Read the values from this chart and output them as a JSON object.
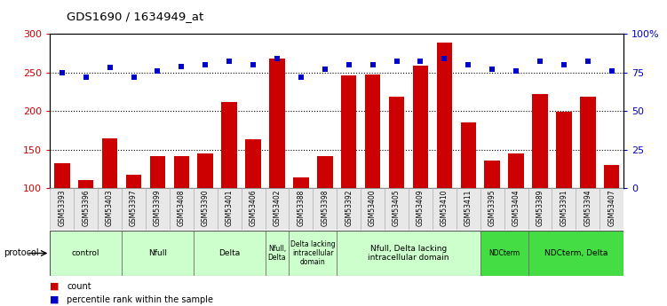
{
  "title": "GDS1690 / 1634949_at",
  "samples": [
    "GSM53393",
    "GSM53396",
    "GSM53403",
    "GSM53397",
    "GSM53399",
    "GSM53408",
    "GSM53390",
    "GSM53401",
    "GSM53406",
    "GSM53402",
    "GSM53388",
    "GSM53398",
    "GSM53392",
    "GSM53400",
    "GSM53405",
    "GSM53409",
    "GSM53410",
    "GSM53411",
    "GSM53395",
    "GSM53404",
    "GSM53389",
    "GSM53391",
    "GSM53394",
    "GSM53407"
  ],
  "counts": [
    132,
    110,
    165,
    117,
    141,
    142,
    145,
    211,
    163,
    268,
    114,
    141,
    246,
    247,
    218,
    259,
    288,
    185,
    136,
    145,
    222,
    199,
    218,
    130
  ],
  "percentiles": [
    75,
    72,
    78,
    72,
    76,
    79,
    80,
    82,
    80,
    84,
    72,
    77,
    80,
    80,
    82,
    82,
    84,
    80,
    77,
    76,
    82,
    80,
    82,
    76
  ],
  "groups": [
    {
      "label": "control",
      "start": 0,
      "end": 3,
      "color": "#ccffcc",
      "dark": false
    },
    {
      "label": "Nfull",
      "start": 3,
      "end": 6,
      "color": "#ccffcc",
      "dark": false
    },
    {
      "label": "Delta",
      "start": 6,
      "end": 9,
      "color": "#ccffcc",
      "dark": false
    },
    {
      "label": "Nfull,\nDelta",
      "start": 9,
      "end": 10,
      "color": "#ccffcc",
      "dark": false
    },
    {
      "label": "Delta lacking\nintracellular\ndomain",
      "start": 10,
      "end": 12,
      "color": "#ccffcc",
      "dark": false
    },
    {
      "label": "Nfull, Delta lacking\nintracellular domain",
      "start": 12,
      "end": 18,
      "color": "#ccffcc",
      "dark": false
    },
    {
      "label": "NDCterm",
      "start": 18,
      "end": 20,
      "color": "#44dd44",
      "dark": true
    },
    {
      "label": "NDCterm, Delta",
      "start": 20,
      "end": 24,
      "color": "#44dd44",
      "dark": true
    }
  ],
  "ylim_left": [
    100,
    300
  ],
  "ylim_right": [
    0,
    100
  ],
  "yticks_left": [
    100,
    150,
    200,
    250,
    300
  ],
  "yticks_right": [
    0,
    25,
    50,
    75,
    100
  ],
  "ytick_labels_right": [
    "0",
    "25",
    "50",
    "75",
    "100%"
  ],
  "bar_color": "#cc0000",
  "dot_color": "#0000cc",
  "bg_color": "#ffffff",
  "protocol_label": "protocol"
}
